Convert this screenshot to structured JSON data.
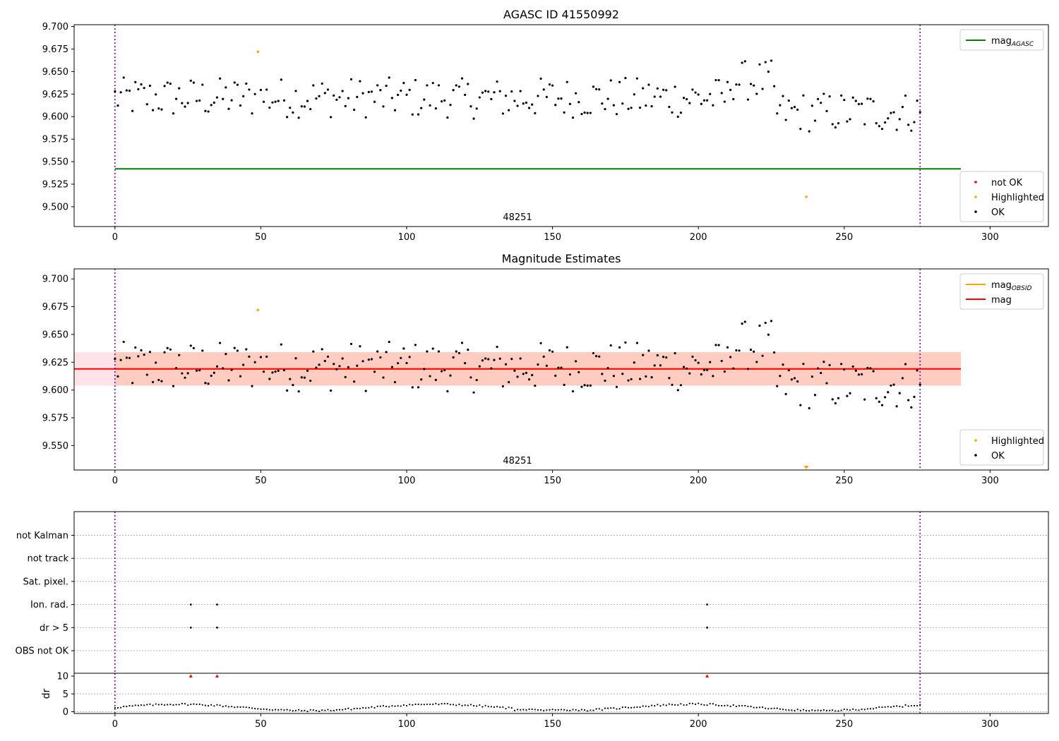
{
  "chart_data": [
    {
      "type": "scatter",
      "title": "AGASC ID 41550992",
      "xlim": [
        -14,
        320
      ],
      "ylim": [
        9.478,
        9.702
      ],
      "xticks": [
        0,
        50,
        100,
        150,
        200,
        250,
        300
      ],
      "yticks": [
        9.5,
        9.525,
        9.55,
        9.575,
        9.6,
        9.625,
        9.65,
        9.675,
        9.7
      ],
      "ytick_labels": [
        "9.500",
        "9.525",
        "9.550",
        "9.575",
        "9.600",
        "9.625",
        "9.650",
        "9.675",
        "9.700"
      ],
      "grid": false,
      "obsid_label": "48251",
      "obsid_bounds": [
        0,
        276
      ],
      "lines": [
        {
          "name": "mag",
          "sub": "AGASC",
          "y": 9.542,
          "x": [
            0,
            290
          ],
          "color": "#008000"
        }
      ],
      "highlighted": [
        {
          "x": 49,
          "y": 9.672
        },
        {
          "x": 237,
          "y": 9.511
        }
      ],
      "legends": [
        {
          "placement": "upper-right",
          "items": [
            {
              "kind": "line",
              "label": "mag",
              "sub": "AGASC",
              "color": "#008000"
            }
          ]
        },
        {
          "placement": "lower-right",
          "items": [
            {
              "kind": "dot",
              "label": "not OK",
              "color": "#ff0000"
            },
            {
              "kind": "dot",
              "label": "Highlighted",
              "color": "#ffa500"
            },
            {
              "kind": "dot",
              "label": "OK",
              "color": "#000000"
            }
          ]
        }
      ]
    },
    {
      "type": "scatter",
      "title": "Magnitude Estimates",
      "xlim": [
        -14,
        320
      ],
      "ylim": [
        9.528,
        9.709
      ],
      "xticks": [
        0,
        50,
        100,
        150,
        200,
        250,
        300
      ],
      "yticks": [
        9.55,
        9.575,
        9.6,
        9.625,
        9.65,
        9.675,
        9.7
      ],
      "ytick_labels": [
        "9.550",
        "9.575",
        "9.600",
        "9.625",
        "9.650",
        "9.675",
        "9.700"
      ],
      "grid": false,
      "obsid_label": "48251",
      "obsid_bounds": [
        0,
        276
      ],
      "lines": [
        {
          "name": "mag",
          "sub": "OBSID",
          "y": 9.619,
          "x": [
            0,
            276
          ],
          "color": "#ffa500"
        },
        {
          "name": "mag",
          "sub": "",
          "y": 9.619,
          "x": [
            -14,
            290
          ],
          "color": "#ff0000"
        }
      ],
      "bands": [
        {
          "x": [
            -14,
            290
          ],
          "y": [
            9.604,
            9.634
          ],
          "color": "#ffc0cb",
          "opacity": 0.45
        },
        {
          "x": [
            0,
            290
          ],
          "y": [
            9.604,
            9.634
          ],
          "color": "#ffa07a",
          "opacity": 0.35
        }
      ],
      "highlighted": [
        {
          "x": 49,
          "y": 9.672
        }
      ],
      "out_of_range_marker": {
        "x": 237,
        "color": "#ffa500"
      },
      "legends": [
        {
          "placement": "upper-right",
          "items": [
            {
              "kind": "line",
              "label": "mag",
              "sub": "OBSID",
              "color": "#ffa500"
            },
            {
              "kind": "line",
              "label": "mag",
              "sub": "",
              "color": "#ff0000"
            }
          ]
        },
        {
          "placement": "lower-right",
          "items": [
            {
              "kind": "dot",
              "label": "Highlighted",
              "color": "#ffa500"
            },
            {
              "kind": "dot",
              "label": "OK",
              "color": "#000000"
            }
          ]
        }
      ]
    },
    {
      "type": "scatter",
      "xlim": [
        -14,
        320
      ],
      "categories": [
        "OBS not OK",
        "dr > 5",
        "Ion. rad.",
        "Sat. pixel.",
        "not track",
        "not Kalman"
      ],
      "flags": [
        {
          "category": "dr > 5",
          "x": [
            26,
            35,
            203
          ]
        },
        {
          "category": "Ion. rad.",
          "x": [
            26,
            35,
            203
          ]
        }
      ],
      "grid": "horizontal-dotted",
      "obsid_bounds": [
        0,
        276
      ]
    },
    {
      "type": "scatter",
      "ylabel": "dr",
      "xlim": [
        -14,
        320
      ],
      "ylim": [
        -0.5,
        10.8
      ],
      "xticks": [
        0,
        50,
        100,
        150,
        200,
        250,
        300
      ],
      "yticks": [
        0,
        5,
        10
      ],
      "ytick_labels": [
        "0",
        "5",
        "10"
      ],
      "grid": "horizontal-dotted",
      "obsid_bounds": [
        0,
        276
      ],
      "clipped_markers": [
        {
          "x": 26,
          "y": 10
        },
        {
          "x": 35,
          "y": 10
        },
        {
          "x": 203,
          "y": 10
        }
      ]
    }
  ]
}
